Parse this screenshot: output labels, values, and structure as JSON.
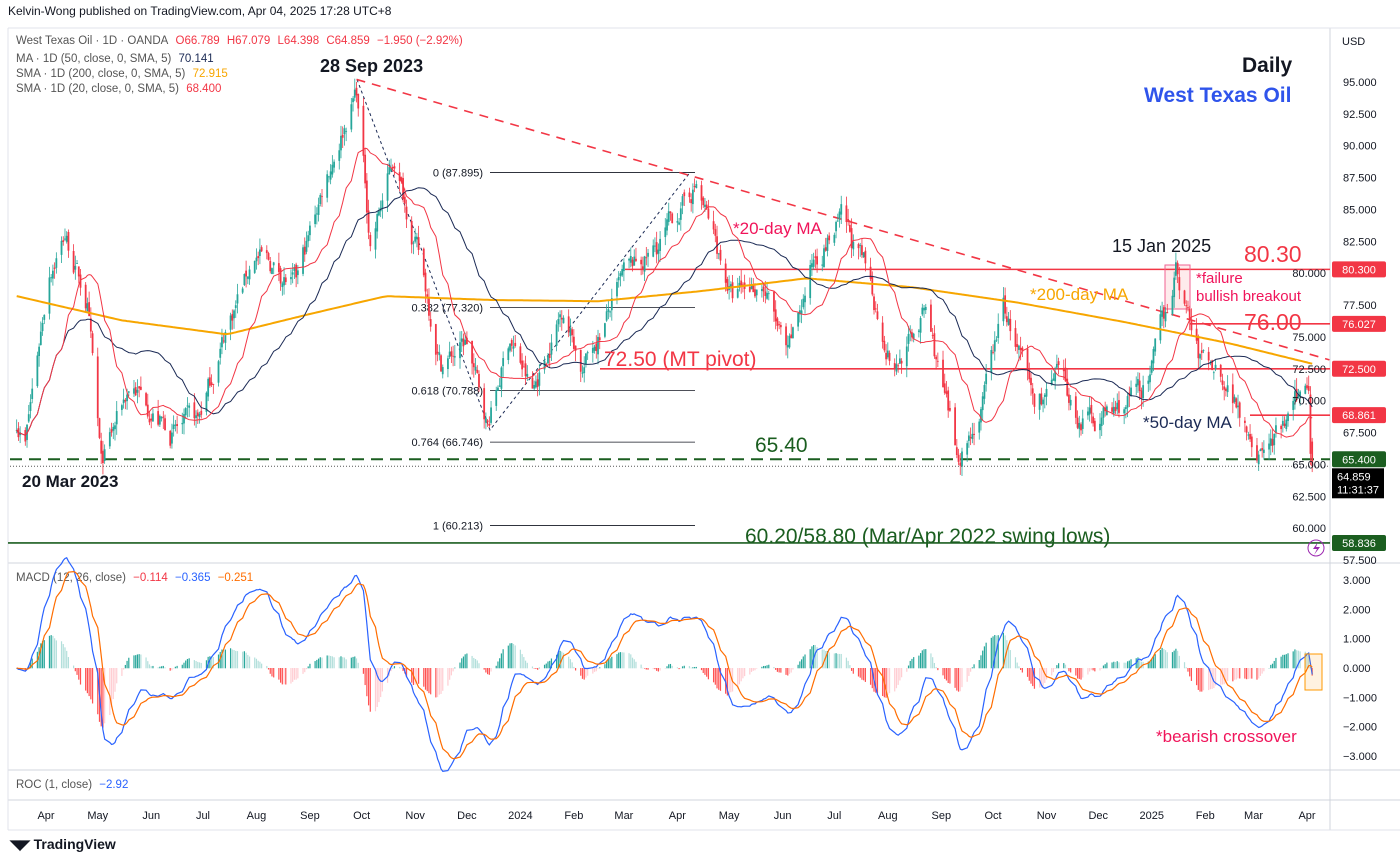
{
  "publisher": "Kelvin-Wong published on TradingView.com, Apr 04, 2025 17:28 UTC+8",
  "legend": {
    "symbol": "West Texas Oil · 1D · OANDA",
    "open": "O66.789",
    "high": "H67.079",
    "low": "L64.398",
    "close": "C64.859",
    "change": "−1.950 (−2.92%)",
    "ma50_label": "MA · 1D (50, close, 0, SMA, 5)",
    "ma50_value": "70.141",
    "sma200_label": "SMA · 1D (200, close, 0, SMA, 5)",
    "sma200_value": "72.915",
    "sma20_label": "SMA · 1D (20, close, 0, SMA, 5)",
    "sma20_value": "68.400",
    "macd_label": "MACD (12, 26, close)",
    "macd_hist": "−0.114",
    "macd_line": "−0.365",
    "macd_signal": "−0.251",
    "roc_label": "ROC (1, close)",
    "roc_value": "−2.92"
  },
  "currency": "USD",
  "logo": "TradingView",
  "colors": {
    "up": "#26a69a",
    "down": "#f23645",
    "sma20": "#f23645",
    "ma50": "#1b2a55",
    "sma200": "#f7a600",
    "macd": "#2962ff",
    "signal": "#ff6d00",
    "green_level": "#1b5e20",
    "red_level": "#f23645",
    "pink": "#f0145a",
    "blue_title": "#2f54eb"
  },
  "annotations": {
    "high_date": "28 Sep 2023",
    "low_date": "20 Mar 2023",
    "timeframe": "Daily",
    "instrument": "West Texas Oil",
    "ma20_note": "*20-day MA",
    "ma200_note": "*200-day MA",
    "ma50_note": "*50-day MA",
    "jan_date": "15 Jan 2025",
    "level_8030": "80.30",
    "level_7600": "76.00",
    "failure_1": "*failure",
    "failure_2": "bullish breakout",
    "pivot": "72.50 (MT pivot)",
    "level_6540": "65.40",
    "swing_lows": "60.20/58.80 (Mar/Apr 2022 swing lows)",
    "bearish": "*bearish crossover"
  },
  "price_badges": [
    {
      "label": "80.300",
      "value": 80.3,
      "color": "#f23645"
    },
    {
      "label": "76.027",
      "value": 76.027,
      "color": "#f23645"
    },
    {
      "label": "72.500",
      "value": 72.5,
      "color": "#f23645"
    },
    {
      "label": "68.861",
      "value": 68.861,
      "color": "#f23645"
    },
    {
      "label": "65.400",
      "value": 65.4,
      "color": "#1b5e20"
    },
    {
      "label": "58.836",
      "value": 58.836,
      "color": "#1b5e20"
    }
  ],
  "last_price": {
    "price": "64.859",
    "countdown": "11:31:37"
  },
  "chart_data": {
    "type": "candlestick",
    "title": "West Texas Oil · 1D · OANDA",
    "ylim": [
      57.5,
      95.0
    ],
    "y_ticks": [
      "95.000",
      "92.500",
      "90.000",
      "87.500",
      "85.000",
      "82.500",
      "80.000",
      "77.500",
      "75.000",
      "72.500",
      "70.000",
      "67.500",
      "65.000",
      "62.500",
      "60.000",
      "57.500"
    ],
    "y_tick_values": [
      95,
      92.5,
      90,
      87.5,
      85,
      82.5,
      80,
      77.5,
      75,
      72.5,
      70,
      67.5,
      65,
      62.5,
      60,
      57.5
    ],
    "x_ticks": [
      {
        "label": "Apr",
        "date": "2023-04-01"
      },
      {
        "label": "May",
        "date": "2023-05-01"
      },
      {
        "label": "Jun",
        "date": "2023-06-01"
      },
      {
        "label": "Jul",
        "date": "2023-07-01"
      },
      {
        "label": "Aug",
        "date": "2023-08-01"
      },
      {
        "label": "Sep",
        "date": "2023-09-01"
      },
      {
        "label": "Oct",
        "date": "2023-10-01"
      },
      {
        "label": "Nov",
        "date": "2023-11-01"
      },
      {
        "label": "Dec",
        "date": "2023-12-01"
      },
      {
        "label": "2024",
        "date": "2024-01-01"
      },
      {
        "label": "Feb",
        "date": "2024-02-01"
      },
      {
        "label": "Mar",
        "date": "2024-03-01"
      },
      {
        "label": "Apr",
        "date": "2024-04-01"
      },
      {
        "label": "May",
        "date": "2024-05-01"
      },
      {
        "label": "Jun",
        "date": "2024-06-01"
      },
      {
        "label": "Jul",
        "date": "2024-07-01"
      },
      {
        "label": "Aug",
        "date": "2024-08-01"
      },
      {
        "label": "Sep",
        "date": "2024-09-01"
      },
      {
        "label": "Oct",
        "date": "2024-10-01"
      },
      {
        "label": "Nov",
        "date": "2024-11-01"
      },
      {
        "label": "Dec",
        "date": "2024-12-01"
      },
      {
        "label": "2025",
        "date": "2025-01-01"
      },
      {
        "label": "Feb",
        "date": "2025-02-01"
      },
      {
        "label": "Mar",
        "date": "2025-03-01"
      },
      {
        "label": "Apr",
        "date": "2025-04-01"
      }
    ],
    "close_anchors": [
      [
        "2023-03-15",
        68.5
      ],
      [
        "2023-03-20",
        66.8
      ],
      [
        "2023-04-03",
        80.5
      ],
      [
        "2023-04-12",
        83.2
      ],
      [
        "2023-04-25",
        77.5
      ],
      [
        "2023-05-03",
        64.5
      ],
      [
        "2023-05-20",
        71.5
      ],
      [
        "2023-06-12",
        67.5
      ],
      [
        "2023-06-28",
        68.2
      ],
      [
        "2023-07-14",
        75.5
      ],
      [
        "2023-07-31",
        81.5
      ],
      [
        "2023-08-24",
        79.0
      ],
      [
        "2023-09-10",
        87.5
      ],
      [
        "2023-09-28",
        94.5
      ],
      [
        "2023-10-06",
        82.5
      ],
      [
        "2023-10-20",
        89.0
      ],
      [
        "2023-11-02",
        82.0
      ],
      [
        "2023-11-16",
        73.0
      ],
      [
        "2023-12-01",
        74.5
      ],
      [
        "2023-12-13",
        68.0
      ],
      [
        "2023-12-26",
        75.0
      ],
      [
        "2024-01-08",
        70.5
      ],
      [
        "2024-01-26",
        77.5
      ],
      [
        "2024-02-06",
        72.5
      ],
      [
        "2024-03-01",
        79.5
      ],
      [
        "2024-03-18",
        81.5
      ],
      [
        "2024-04-12",
        87.0
      ],
      [
        "2024-05-03",
        78.0
      ],
      [
        "2024-05-20",
        79.5
      ],
      [
        "2024-06-04",
        73.0
      ],
      [
        "2024-06-20",
        81.5
      ],
      [
        "2024-07-05",
        84.0
      ],
      [
        "2024-07-19",
        80.0
      ],
      [
        "2024-08-05",
        72.5
      ],
      [
        "2024-08-23",
        77.0
      ],
      [
        "2024-09-10",
        65.5
      ],
      [
        "2024-09-25",
        69.5
      ],
      [
        "2024-10-07",
        77.5
      ],
      [
        "2024-10-25",
        69.5
      ],
      [
        "2024-11-08",
        71.5
      ],
      [
        "2024-11-20",
        68.5
      ],
      [
        "2024-12-10",
        69.0
      ],
      [
        "2024-12-31",
        71.5
      ],
      [
        "2025-01-15",
        80.2
      ],
      [
        "2025-01-28",
        73.5
      ],
      [
        "2025-02-10",
        72.5
      ],
      [
        "2025-02-25",
        68.5
      ],
      [
        "2025-03-05",
        66.0
      ],
      [
        "2025-03-18",
        67.5
      ],
      [
        "2025-04-02",
        71.5
      ],
      [
        "2025-04-03",
        66.8
      ],
      [
        "2025-04-04",
        64.859
      ]
    ],
    "sma200_anchors": [
      [
        "2023-03-15",
        78.2
      ],
      [
        "2023-05-15",
        76.3
      ],
      [
        "2023-07-15",
        75.2
      ],
      [
        "2023-09-01",
        76.8
      ],
      [
        "2023-10-15",
        78.2
      ],
      [
        "2023-12-15",
        77.9
      ],
      [
        "2024-02-15",
        77.8
      ],
      [
        "2024-04-15",
        78.6
      ],
      [
        "2024-06-15",
        79.6
      ],
      [
        "2024-08-15",
        78.9
      ],
      [
        "2024-10-15",
        77.7
      ],
      [
        "2024-12-15",
        76.2
      ],
      [
        "2025-02-15",
        74.5
      ],
      [
        "2025-04-04",
        72.9
      ]
    ],
    "last_candle": {
      "open": 66.789,
      "high": 67.079,
      "low": 64.398,
      "close": 64.859
    },
    "fibonacci": [
      {
        "label": "0 (87.895)",
        "value": 87.895
      },
      {
        "label": "0.382 (77.320)",
        "value": 77.32
      },
      {
        "label": "0.618 (70.788)",
        "value": 70.788
      },
      {
        "label": "0.764 (66.746)",
        "value": 66.746
      },
      {
        "label": "1 (60.213)",
        "value": 60.213
      }
    ],
    "levels": {
      "resistance_1": 80.3,
      "resistance_2": 76.027,
      "pivot": 72.5,
      "minor": 68.861,
      "support": 65.4,
      "swing_low": 58.836
    },
    "trendline": {
      "from": [
        "2023-09-28",
        95.2
      ],
      "to": [
        "2025-04-14",
        73.2
      ]
    },
    "macd": {
      "ylim": [
        -3.3,
        3.5
      ],
      "y_ticks": [
        "3.000",
        "2.000",
        "1.000",
        "0.000",
        "−1.000",
        "−2.000",
        "−3.000"
      ],
      "y_tick_values": [
        3,
        2,
        1,
        0,
        -1,
        -2,
        -3
      ]
    }
  }
}
